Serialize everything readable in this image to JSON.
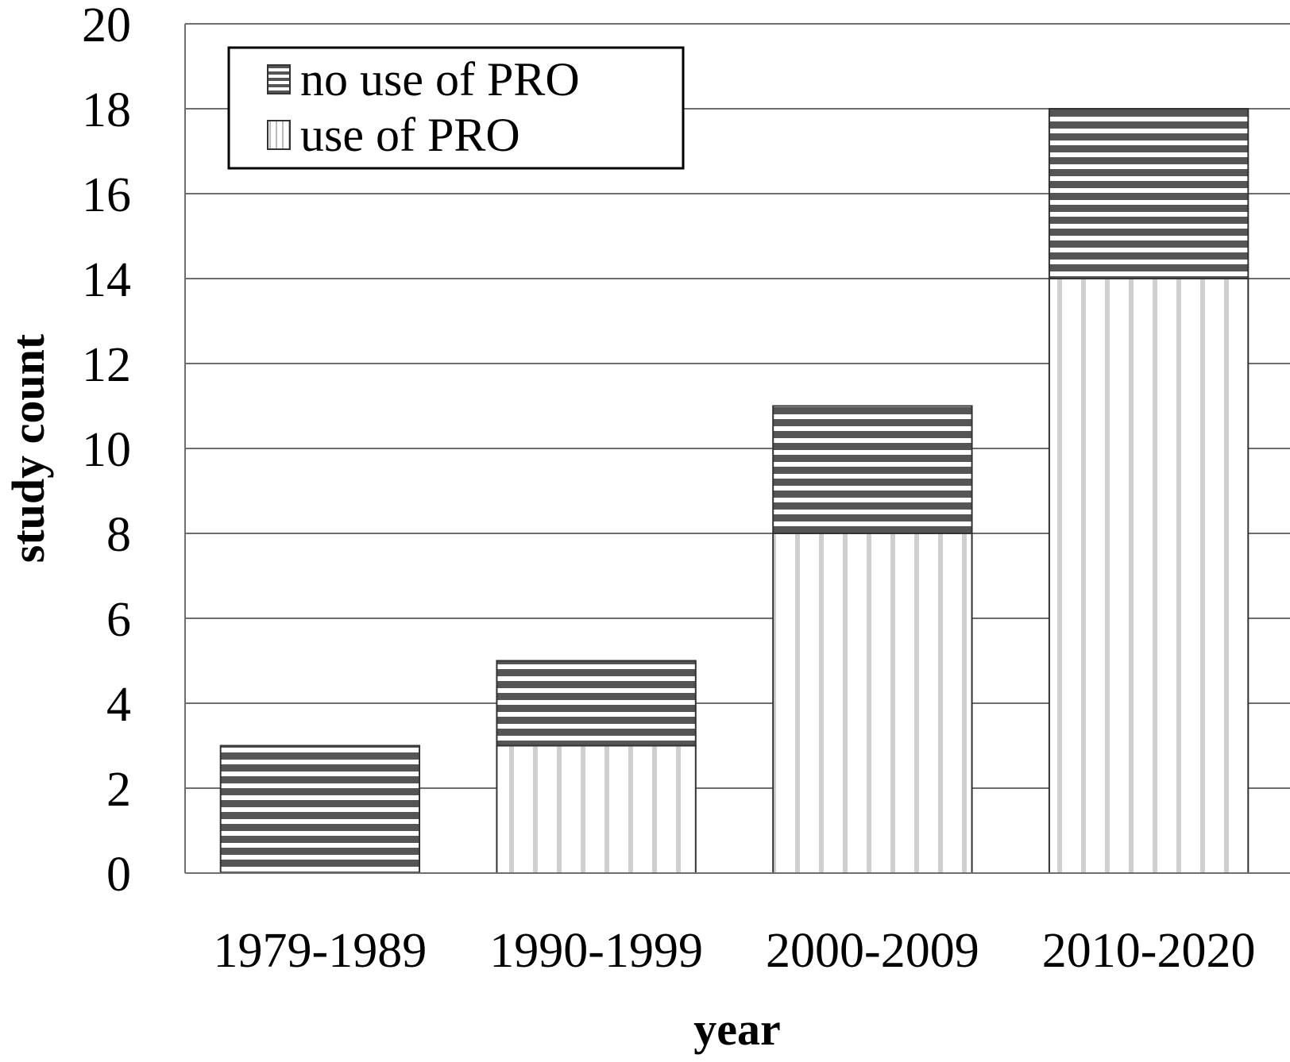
{
  "chart_data": {
    "type": "bar",
    "stacked": true,
    "categories": [
      "1979-1989",
      "1990-1999",
      "2000-2009",
      "2010-2020"
    ],
    "series": [
      {
        "name": "use of PRO",
        "values": [
          0,
          3,
          8,
          14
        ],
        "pattern": "vertical-lines",
        "color": "#cfcfcf"
      },
      {
        "name": "no use of PRO",
        "values": [
          3,
          2,
          3,
          4
        ],
        "pattern": "horizontal-lines",
        "color": "#555555"
      }
    ],
    "xlabel": "year",
    "ylabel": "study count",
    "ylim": [
      0,
      20
    ],
    "yticks": [
      "0",
      "2",
      "4",
      "6",
      "8",
      "10",
      "12",
      "14",
      "16",
      "18",
      "20"
    ],
    "grid": true,
    "legend_position": "top-left",
    "legend_order": [
      "no use of PRO",
      "use of PRO"
    ]
  }
}
